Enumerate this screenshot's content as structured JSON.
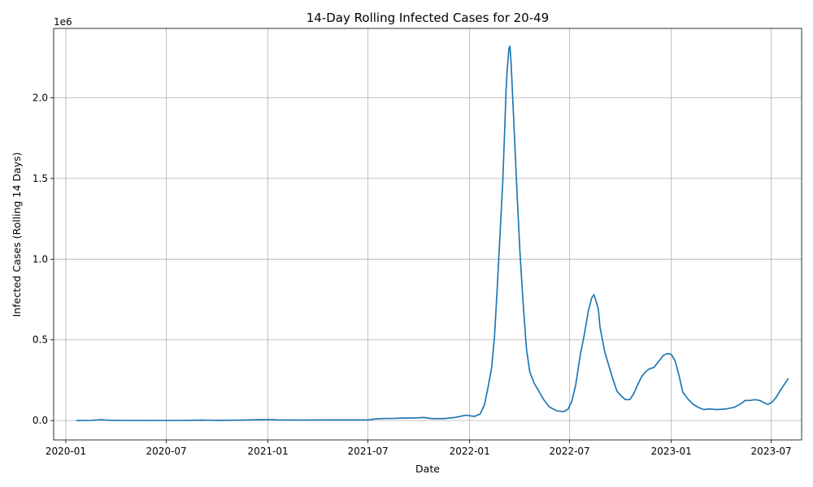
{
  "chart_data": {
    "type": "line",
    "title": "14-Day Rolling Infected Cases for 20-49",
    "xlabel": "Date",
    "ylabel": "Infected Cases (Rolling 14 Days)",
    "y_offset_label": "1e6",
    "y_scale": 1000000,
    "x_range": [
      "2019-12-10",
      "2023-08-25"
    ],
    "ylim": [
      -120000,
      2430000
    ],
    "grid": true,
    "x_ticks": [
      {
        "date": "2020-01-01",
        "label": "2020-01"
      },
      {
        "date": "2020-07-01",
        "label": "2020-07"
      },
      {
        "date": "2021-01-01",
        "label": "2021-01"
      },
      {
        "date": "2021-07-01",
        "label": "2021-07"
      },
      {
        "date": "2022-01-01",
        "label": "2022-01"
      },
      {
        "date": "2022-07-01",
        "label": "2022-07"
      },
      {
        "date": "2023-01-01",
        "label": "2023-01"
      },
      {
        "date": "2023-07-01",
        "label": "2023-07"
      }
    ],
    "y_ticks": [
      {
        "value": 0,
        "label": "0.0"
      },
      {
        "value": 500000,
        "label": "0.5"
      },
      {
        "value": 1000000,
        "label": "1.0"
      },
      {
        "value": 1500000,
        "label": "1.5"
      },
      {
        "value": 2000000,
        "label": "2.0"
      }
    ],
    "series": [
      {
        "color": "#1f77b4",
        "points": [
          [
            "2020-01-20",
            0
          ],
          [
            "2020-02-15",
            1000
          ],
          [
            "2020-03-05",
            5000
          ],
          [
            "2020-03-20",
            2000
          ],
          [
            "2020-04-15",
            1000
          ],
          [
            "2020-06-01",
            500
          ],
          [
            "2020-08-01",
            1000
          ],
          [
            "2020-09-01",
            2500
          ],
          [
            "2020-10-01",
            1500
          ],
          [
            "2020-11-15",
            2500
          ],
          [
            "2020-12-15",
            5000
          ],
          [
            "2021-01-01",
            6000
          ],
          [
            "2021-01-20",
            4000
          ],
          [
            "2021-03-01",
            3000
          ],
          [
            "2021-05-01",
            4000
          ],
          [
            "2021-07-01",
            4000
          ],
          [
            "2021-07-15",
            10000
          ],
          [
            "2021-08-01",
            13000
          ],
          [
            "2021-08-15",
            13000
          ],
          [
            "2021-09-01",
            15000
          ],
          [
            "2021-09-25",
            16000
          ],
          [
            "2021-10-10",
            19000
          ],
          [
            "2021-10-25",
            12000
          ],
          [
            "2021-11-15",
            12000
          ],
          [
            "2021-12-05",
            19000
          ],
          [
            "2021-12-25",
            33000
          ],
          [
            "2022-01-10",
            26000
          ],
          [
            "2022-01-20",
            40000
          ],
          [
            "2022-01-28",
            100000
          ],
          [
            "2022-02-03",
            200000
          ],
          [
            "2022-02-10",
            330000
          ],
          [
            "2022-02-15",
            520000
          ],
          [
            "2022-02-20",
            820000
          ],
          [
            "2022-02-25",
            1150000
          ],
          [
            "2022-03-02",
            1480000
          ],
          [
            "2022-03-06",
            1850000
          ],
          [
            "2022-03-08",
            2050000
          ],
          [
            "2022-03-10",
            2170000
          ],
          [
            "2022-03-13",
            2300000
          ],
          [
            "2022-03-15",
            2320000
          ],
          [
            "2022-03-17",
            2220000
          ],
          [
            "2022-03-20",
            2000000
          ],
          [
            "2022-03-24",
            1700000
          ],
          [
            "2022-03-28",
            1400000
          ],
          [
            "2022-04-02",
            1050000
          ],
          [
            "2022-04-08",
            720000
          ],
          [
            "2022-04-14",
            440000
          ],
          [
            "2022-04-20",
            300000
          ],
          [
            "2022-04-28",
            230000
          ],
          [
            "2022-05-05",
            190000
          ],
          [
            "2022-05-15",
            130000
          ],
          [
            "2022-05-25",
            85000
          ],
          [
            "2022-06-08",
            60000
          ],
          [
            "2022-06-20",
            55000
          ],
          [
            "2022-06-28",
            70000
          ],
          [
            "2022-07-05",
            120000
          ],
          [
            "2022-07-12",
            220000
          ],
          [
            "2022-07-20",
            400000
          ],
          [
            "2022-07-28",
            540000
          ],
          [
            "2022-08-04",
            680000
          ],
          [
            "2022-08-10",
            760000
          ],
          [
            "2022-08-14",
            780000
          ],
          [
            "2022-08-17",
            750000
          ],
          [
            "2022-08-22",
            690000
          ],
          [
            "2022-08-25",
            580000
          ],
          [
            "2022-09-03",
            420000
          ],
          [
            "2022-09-10",
            340000
          ],
          [
            "2022-09-17",
            260000
          ],
          [
            "2022-09-25",
            180000
          ],
          [
            "2022-10-03",
            150000
          ],
          [
            "2022-10-10",
            130000
          ],
          [
            "2022-10-18",
            130000
          ],
          [
            "2022-10-25",
            165000
          ],
          [
            "2022-11-01",
            220000
          ],
          [
            "2022-11-08",
            270000
          ],
          [
            "2022-11-15",
            300000
          ],
          [
            "2022-11-22",
            320000
          ],
          [
            "2022-12-01",
            330000
          ],
          [
            "2022-12-10",
            370000
          ],
          [
            "2022-12-18",
            405000
          ],
          [
            "2022-12-25",
            415000
          ],
          [
            "2023-01-01",
            410000
          ],
          [
            "2023-01-08",
            370000
          ],
          [
            "2023-01-15",
            280000
          ],
          [
            "2023-01-22",
            175000
          ],
          [
            "2023-02-01",
            130000
          ],
          [
            "2023-02-10",
            100000
          ],
          [
            "2023-02-20",
            80000
          ],
          [
            "2023-03-01",
            68000
          ],
          [
            "2023-03-10",
            72000
          ],
          [
            "2023-03-25",
            68000
          ],
          [
            "2023-04-10",
            72000
          ],
          [
            "2023-04-25",
            82000
          ],
          [
            "2023-05-05",
            100000
          ],
          [
            "2023-05-15",
            125000
          ],
          [
            "2023-05-25",
            125000
          ],
          [
            "2023-06-01",
            130000
          ],
          [
            "2023-06-10",
            125000
          ],
          [
            "2023-06-18",
            110000
          ],
          [
            "2023-06-25",
            100000
          ],
          [
            "2023-07-03",
            115000
          ],
          [
            "2023-07-10",
            145000
          ],
          [
            "2023-07-20",
            200000
          ],
          [
            "2023-08-01",
            262000
          ]
        ]
      }
    ]
  }
}
